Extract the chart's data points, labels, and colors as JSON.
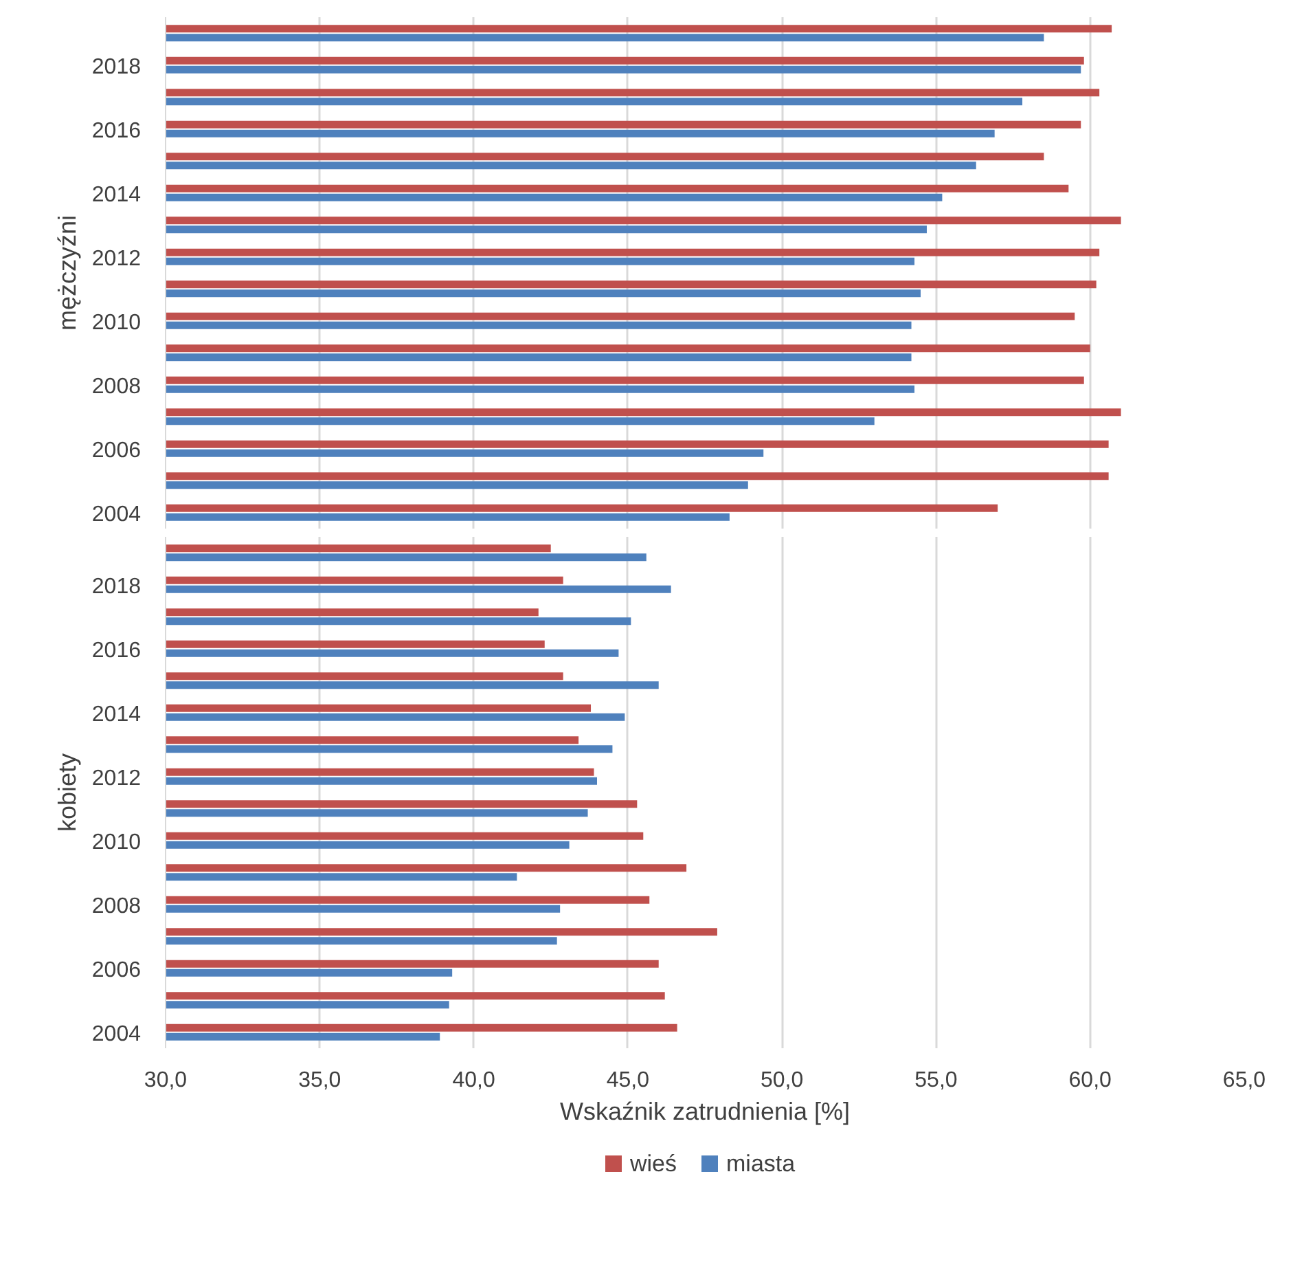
{
  "chart_data": [
    {
      "type": "bar",
      "orientation": "horizontal",
      "ylabel": "mężczyźni",
      "categories": [
        null,
        "2018",
        null,
        "2016",
        null,
        "2014",
        null,
        "2012",
        null,
        "2010",
        null,
        "2008",
        null,
        "2006",
        null,
        "2004"
      ],
      "xlim": [
        30,
        65
      ],
      "xticks": [
        {
          "value": 30,
          "label": null
        },
        {
          "value": 35,
          "label": null
        },
        {
          "value": 40,
          "label": null
        },
        {
          "value": 45,
          "label": null
        },
        {
          "value": 50,
          "label": null
        },
        {
          "value": 55,
          "label": null
        },
        {
          "value": 60,
          "label": null
        },
        {
          "value": 65,
          "label": null
        }
      ],
      "grid": "x",
      "tick_labels": "y",
      "series": [
        {
          "color": "#c0504d",
          "values": [
            60.7,
            59.8,
            60.3,
            59.7,
            58.5,
            59.3,
            61.0,
            60.3,
            60.2,
            59.5,
            60.0,
            59.8,
            61.0,
            60.6,
            60.6,
            57.0
          ]
        },
        {
          "color": "#4f81bd",
          "values": [
            58.5,
            59.7,
            57.8,
            56.9,
            56.3,
            55.2,
            54.7,
            54.3,
            54.5,
            54.2,
            54.2,
            54.3,
            53.0,
            49.4,
            48.9,
            48.3
          ]
        }
      ]
    },
    {
      "type": "bar",
      "orientation": "horizontal",
      "ylabel": "kobiety",
      "xlabel": "Wskaźnik zatrudnienia [%]",
      "categories": [
        null,
        "2018",
        null,
        "2016",
        null,
        "2014",
        null,
        "2012",
        null,
        "2010",
        null,
        "2008",
        null,
        "2006",
        null,
        "2004"
      ],
      "xlim": [
        30,
        65
      ],
      "xticks": [
        {
          "value": 30,
          "label": "30,0"
        },
        {
          "value": 35,
          "label": "35,0"
        },
        {
          "value": 40,
          "label": "40,0"
        },
        {
          "value": 45,
          "label": "45,0"
        },
        {
          "value": 50,
          "label": "50,0"
        },
        {
          "value": 55,
          "label": "55,0"
        },
        {
          "value": 60,
          "label": "60,0"
        },
        {
          "value": 65,
          "label": "65,0"
        }
      ],
      "grid": "x",
      "legend": "bottom",
      "series": [
        {
          "name": "wieś",
          "color": "#c0504d",
          "values": [
            42.5,
            42.9,
            42.1,
            42.3,
            42.9,
            43.8,
            43.4,
            43.9,
            45.3,
            45.5,
            46.9,
            45.7,
            47.9,
            46.0,
            46.2,
            46.6
          ]
        },
        {
          "name": "miasta",
          "color": "#4f81bd",
          "values": [
            45.6,
            46.4,
            45.1,
            44.7,
            46.0,
            44.9,
            44.5,
            44.0,
            43.7,
            43.1,
            41.4,
            42.8,
            42.7,
            39.3,
            39.2,
            38.9
          ]
        }
      ]
    }
  ]
}
